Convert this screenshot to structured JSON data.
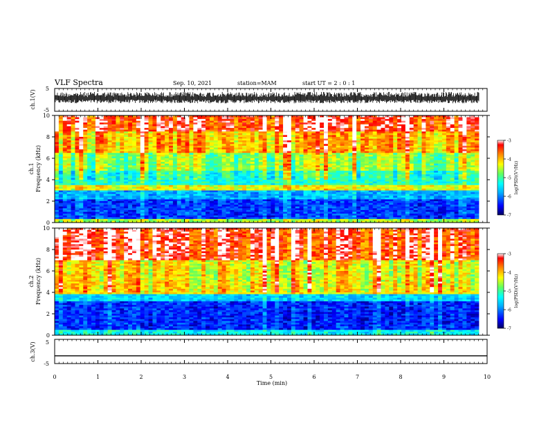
{
  "header": {
    "title": "VLF Spectra",
    "date": "Sep. 10, 2021",
    "station": "station=MAM",
    "start_ut": "start UT =  2 : 0 : 1"
  },
  "colors": {
    "background": "#ffffff",
    "axis": "#000000",
    "colormap": [
      "#00007f",
      "#0000ff",
      "#00a0ff",
      "#00ffff",
      "#7fff7f",
      "#ffff00",
      "#ff8000",
      "#ff0000",
      "#ffffff"
    ]
  },
  "chart_data": [
    {
      "type": "line",
      "panel": "ch1-waveform",
      "ylabel": "ch.1(V)",
      "ylim": [
        -5,
        5
      ],
      "yticks": [
        "5",
        "-5"
      ],
      "signal_amplitude_range": [
        -1.5,
        3.5
      ],
      "xlim": [
        0,
        10
      ],
      "xunits": "min"
    },
    {
      "type": "heatmap",
      "panel": "ch1-spectrogram",
      "ylabel_channel": "ch.1",
      "ylabel": "Frequency (kHz)",
      "ylim": [
        0,
        10
      ],
      "yticks": [
        "0",
        "2",
        "4",
        "6",
        "8",
        "10"
      ],
      "xlim": [
        0,
        10
      ],
      "colorbar": {
        "label": "log(PSD)(V²/Hz)",
        "range": [
          -7,
          -3
        ],
        "ticks": [
          "-3",
          "-4",
          "-5",
          "-6",
          "-7"
        ]
      },
      "bands": [
        {
          "from": 0.0,
          "to": 0.4,
          "level": -4.6
        },
        {
          "from": 0.4,
          "to": 2.2,
          "level": -6.3
        },
        {
          "from": 2.2,
          "to": 3.0,
          "level": -5.8
        },
        {
          "from": 3.0,
          "to": 3.5,
          "level": -4.3
        },
        {
          "from": 3.5,
          "to": 4.8,
          "level": -5.2
        },
        {
          "from": 4.8,
          "to": 6.5,
          "level": -4.7
        },
        {
          "from": 6.5,
          "to": 8.5,
          "level": -4.0
        },
        {
          "from": 8.5,
          "to": 10.0,
          "level": -3.4
        }
      ]
    },
    {
      "type": "heatmap",
      "panel": "ch2-spectrogram",
      "ylabel_channel": "ch.2",
      "ylabel": "Frequency (kHz)",
      "ylim": [
        0,
        10
      ],
      "yticks": [
        "0",
        "2",
        "4",
        "6",
        "8",
        "10"
      ],
      "xlim": [
        0,
        10
      ],
      "colorbar": {
        "label": "log(PSD)(V²/Hz)",
        "range": [
          -7,
          -3
        ],
        "ticks": [
          "-3",
          "-4",
          "-5",
          "-6",
          "-7"
        ]
      },
      "bands": [
        {
          "from": 0.0,
          "to": 0.5,
          "level": -5.4
        },
        {
          "from": 0.5,
          "to": 3.2,
          "level": -6.4
        },
        {
          "from": 3.2,
          "to": 3.8,
          "level": -5.6
        },
        {
          "from": 3.8,
          "to": 5.0,
          "level": -4.2
        },
        {
          "from": 5.0,
          "to": 7.0,
          "level": -4.3
        },
        {
          "from": 7.0,
          "to": 10.0,
          "level": -3.4
        }
      ]
    },
    {
      "type": "line",
      "panel": "ch3-waveform",
      "ylabel": "ch.3(V)",
      "ylim": [
        -5,
        5
      ],
      "yticks": [
        "5",
        "-5"
      ],
      "flat_value": -1.8,
      "xlim": [
        0,
        10
      ],
      "xlabel": "Time (min)",
      "xticks": [
        "0",
        "1",
        "2",
        "3",
        "4",
        "5",
        "6",
        "7",
        "8",
        "9",
        "10"
      ]
    }
  ]
}
